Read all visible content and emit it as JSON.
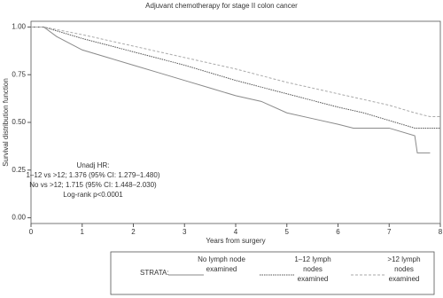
{
  "chart_data": {
    "type": "line",
    "title": "Adjuvant chemotherapy for stage II colon cancer",
    "xlabel": "Years from surgery",
    "ylabel": "Survival distribution function",
    "xlim": [
      0,
      8
    ],
    "ylim": [
      -0.03,
      1.03
    ],
    "xticks": [
      0,
      1,
      2,
      3,
      4,
      5,
      6,
      7,
      8
    ],
    "yticks": [
      {
        "value": 0,
        "label": "0.00"
      },
      {
        "value": 0.25,
        "label": "0.25"
      },
      {
        "value": 0.5,
        "label": "0.50"
      },
      {
        "value": 0.75,
        "label": "0.75"
      },
      {
        "value": 1,
        "label": "1.00"
      }
    ],
    "annotations": [
      "Unadj HR:",
      "1–12 vs >12; 1.376 (95% CI: 1.279–1.480)",
      "No vs >12; 1.715 (95% CI: 1.448–2.030)",
      "Log-rank p<0.0001"
    ],
    "legend_title": "STRATA:",
    "series": [
      {
        "name": "No lymph node examined",
        "color": "#8a8a8a",
        "linestyle": "solid",
        "x": [
          0,
          0.25,
          0.5,
          1,
          1.5,
          2,
          2.5,
          3,
          3.5,
          4,
          4.5,
          5,
          5.5,
          6,
          6.3,
          7,
          7.5,
          7.55,
          7.8
        ],
        "values": [
          1,
          1,
          0.95,
          0.88,
          0.84,
          0.8,
          0.76,
          0.72,
          0.68,
          0.64,
          0.61,
          0.55,
          0.52,
          0.49,
          0.47,
          0.47,
          0.43,
          0.34,
          0.34
        ]
      },
      {
        "name": "1–12 lymph nodes examined",
        "color": "#555555",
        "linestyle": "dotted",
        "x": [
          0,
          0.25,
          1,
          2,
          3,
          4,
          5,
          6,
          6.5,
          7,
          7.5,
          8
        ],
        "values": [
          1,
          1,
          0.94,
          0.87,
          0.8,
          0.72,
          0.65,
          0.58,
          0.55,
          0.51,
          0.47,
          0.47
        ]
      },
      {
        "name": ">12 lymph nodes examined",
        "color": "#aaaaaa",
        "linestyle": "dashed",
        "x": [
          0,
          0.25,
          1,
          2,
          3,
          4,
          5,
          6,
          7,
          7.5,
          7.8,
          8
        ],
        "values": [
          1,
          1,
          0.96,
          0.9,
          0.84,
          0.78,
          0.71,
          0.65,
          0.59,
          0.55,
          0.53,
          0.53
        ]
      }
    ]
  }
}
